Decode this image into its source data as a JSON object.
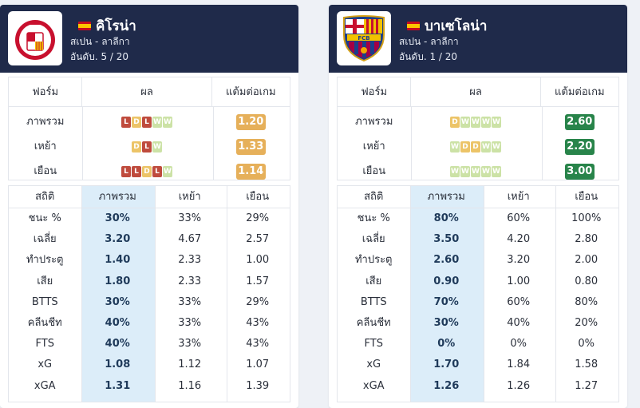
{
  "teams": [
    {
      "name": "คิโรน่า",
      "league": "สเปน - ลาลีกา",
      "rank": "อันดับ. 5 / 20",
      "logo": "girona-crest-icon",
      "form_headers": [
        "ฟอร์ม",
        "ผล",
        "แต้มต่อเกม"
      ],
      "form_rows": [
        {
          "label": "ภาพรวม",
          "results": [
            "L",
            "D",
            "L",
            "W",
            "W"
          ],
          "ppg": "1.20"
        },
        {
          "label": "เหย้า",
          "results": [
            "D",
            "L",
            "W"
          ],
          "ppg": "1.33"
        },
        {
          "label": "เยือน",
          "results": [
            "L",
            "L",
            "D",
            "L",
            "W"
          ],
          "ppg": "1.14"
        }
      ],
      "stats_headers": [
        "สถิติ",
        "ภาพรวม",
        "เหย้า",
        "เยือน"
      ],
      "stats_rows": [
        {
          "label": "ชนะ %",
          "overall": "30%",
          "home": "33%",
          "away": "29%"
        },
        {
          "label": "เฉลี่ย",
          "overall": "3.20",
          "home": "4.67",
          "away": "2.57"
        },
        {
          "label": "ทำประตู",
          "overall": "1.40",
          "home": "2.33",
          "away": "1.00"
        },
        {
          "label": "เสีย",
          "overall": "1.80",
          "home": "2.33",
          "away": "1.57"
        },
        {
          "label": "BTTS",
          "overall": "30%",
          "home": "33%",
          "away": "29%"
        },
        {
          "label": "คลีนชีท",
          "overall": "40%",
          "home": "33%",
          "away": "43%"
        },
        {
          "label": "FTS",
          "overall": "40%",
          "home": "33%",
          "away": "43%"
        },
        {
          "label": "xG",
          "overall": "1.08",
          "home": "1.12",
          "away": "1.07"
        },
        {
          "label": "xGA",
          "overall": "1.31",
          "home": "1.16",
          "away": "1.39"
        }
      ]
    },
    {
      "name": "บาเซโลน่า",
      "league": "สเปน - ลาลีกา",
      "rank": "อันดับ. 1 / 20",
      "logo": "barcelona-crest-icon",
      "form_headers": [
        "ฟอร์ม",
        "ผล",
        "แต้มต่อเกม"
      ],
      "form_rows": [
        {
          "label": "ภาพรวม",
          "results": [
            "D",
            "W",
            "W",
            "W",
            "W"
          ],
          "ppg": "2.60"
        },
        {
          "label": "เหย้า",
          "results": [
            "W",
            "D",
            "D",
            "W",
            "W"
          ],
          "ppg": "2.20"
        },
        {
          "label": "เยือน",
          "results": [
            "W",
            "W",
            "W",
            "W",
            "W"
          ],
          "ppg": "3.00"
        }
      ],
      "stats_headers": [
        "สถิติ",
        "ภาพรวม",
        "เหย้า",
        "เยือน"
      ],
      "stats_rows": [
        {
          "label": "ชนะ %",
          "overall": "80%",
          "home": "60%",
          "away": "100%"
        },
        {
          "label": "เฉลี่ย",
          "overall": "3.50",
          "home": "4.20",
          "away": "2.80"
        },
        {
          "label": "ทำประตู",
          "overall": "2.60",
          "home": "3.20",
          "away": "2.00"
        },
        {
          "label": "เสีย",
          "overall": "0.90",
          "home": "1.00",
          "away": "0.80"
        },
        {
          "label": "BTTS",
          "overall": "70%",
          "home": "60%",
          "away": "80%"
        },
        {
          "label": "คลีนชีท",
          "overall": "30%",
          "home": "40%",
          "away": "20%"
        },
        {
          "label": "FTS",
          "overall": "0%",
          "home": "0%",
          "away": "0%"
        },
        {
          "label": "xG",
          "overall": "1.70",
          "home": "1.84",
          "away": "1.58"
        },
        {
          "label": "xGA",
          "overall": "1.26",
          "home": "1.26",
          "away": "1.27"
        }
      ]
    }
  ],
  "colors": {
    "header_bg": "#1f2a4a",
    "win": "#cce2a6",
    "draw": "#ecc468",
    "loss": "#bf4b3d",
    "ppg_mid": "#e6b05a",
    "ppg_good": "#28844a",
    "overall_highlight": "#dcedf9"
  }
}
